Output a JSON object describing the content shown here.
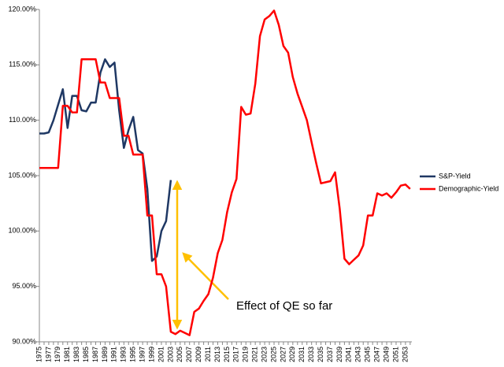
{
  "chart_data": {
    "type": "line",
    "annotation": "Effect of QE so far",
    "categories": [
      "1975",
      null,
      "1977",
      null,
      "1979",
      null,
      "1981",
      null,
      "1983",
      null,
      "1985",
      null,
      "1987",
      null,
      "1989",
      null,
      "1991",
      null,
      "1993",
      null,
      "1995",
      null,
      "1997",
      null,
      "1999",
      null,
      "2001",
      null,
      "2003",
      null,
      "2005",
      null,
      "2007",
      null,
      "2009",
      null,
      "2011",
      null,
      "2013",
      null,
      "2015",
      null,
      "2017",
      null,
      "2019",
      null,
      "2021",
      null,
      "2023",
      null,
      "2025",
      null,
      "2027",
      null,
      "2029",
      null,
      "2031",
      null,
      "2033",
      null,
      "2035",
      null,
      "2037",
      null,
      "2039",
      null,
      "2041",
      null,
      "2043",
      null,
      "2045",
      null,
      "2047",
      null,
      "2049",
      null,
      "2051",
      null,
      "2053",
      null
    ],
    "series": [
      {
        "name": "S&P-Yield",
        "color": "#1f3864",
        "values": [
          108.8,
          108.8,
          108.9,
          110.0,
          111.4,
          112.8,
          109.3,
          112.2,
          112.2,
          110.9,
          110.8,
          111.6,
          111.6,
          114.3,
          115.5,
          114.8,
          115.2,
          110.9,
          107.5,
          109.1,
          110.3,
          107.3,
          107.0,
          103.8,
          97.3,
          97.7,
          100.0,
          100.9,
          104.6,
          null,
          null,
          null,
          null,
          null,
          null,
          null,
          null,
          null,
          null,
          null,
          null,
          null,
          null,
          null,
          null,
          null,
          null,
          null,
          null,
          null,
          null,
          null,
          null,
          null,
          null,
          null,
          null,
          null,
          null,
          null,
          null,
          null,
          null,
          null,
          null,
          null,
          null,
          null,
          null,
          null,
          null,
          null,
          null,
          null,
          null,
          null,
          null,
          null,
          null,
          null
        ]
      },
      {
        "name": "Demographic-Yield",
        "color": "#ff0000",
        "values": [
          105.7,
          105.7,
          105.7,
          105.7,
          105.7,
          111.3,
          111.3,
          110.7,
          110.7,
          115.5,
          115.5,
          115.5,
          115.5,
          113.4,
          113.4,
          112.0,
          112.0,
          112.0,
          108.6,
          108.6,
          106.9,
          106.9,
          106.9,
          101.4,
          101.4,
          96.1,
          96.1,
          95.0,
          90.9,
          90.7,
          91.0,
          90.8,
          90.6,
          92.7,
          93.0,
          93.7,
          94.3,
          95.8,
          98.0,
          99.2,
          101.7,
          103.5,
          104.7,
          111.2,
          110.5,
          110.6,
          113.3,
          117.6,
          119.1,
          119.4,
          119.9,
          118.6,
          116.7,
          116.1,
          113.9,
          112.4,
          111.2,
          110.0,
          108.0,
          106.1,
          104.3,
          104.4,
          104.5,
          105.3,
          102.0,
          97.5,
          97.0,
          97.4,
          97.8,
          98.7,
          101.4,
          101.4,
          103.4,
          103.2,
          103.4,
          103.0,
          103.5,
          104.1,
          104.2,
          103.8
        ]
      }
    ],
    "ylim": [
      90,
      120
    ],
    "yticks": [
      {
        "value": 90,
        "label": "90.00%"
      },
      {
        "value": 95,
        "label": "95.00%"
      },
      {
        "value": 100,
        "label": "100.00%"
      },
      {
        "value": 105,
        "label": "105.00%"
      },
      {
        "value": 110,
        "label": "110.00%"
      },
      {
        "value": 115,
        "label": "115.00%"
      },
      {
        "value": 120,
        "label": "120.00%"
      }
    ],
    "grid": false,
    "legend": "right"
  }
}
